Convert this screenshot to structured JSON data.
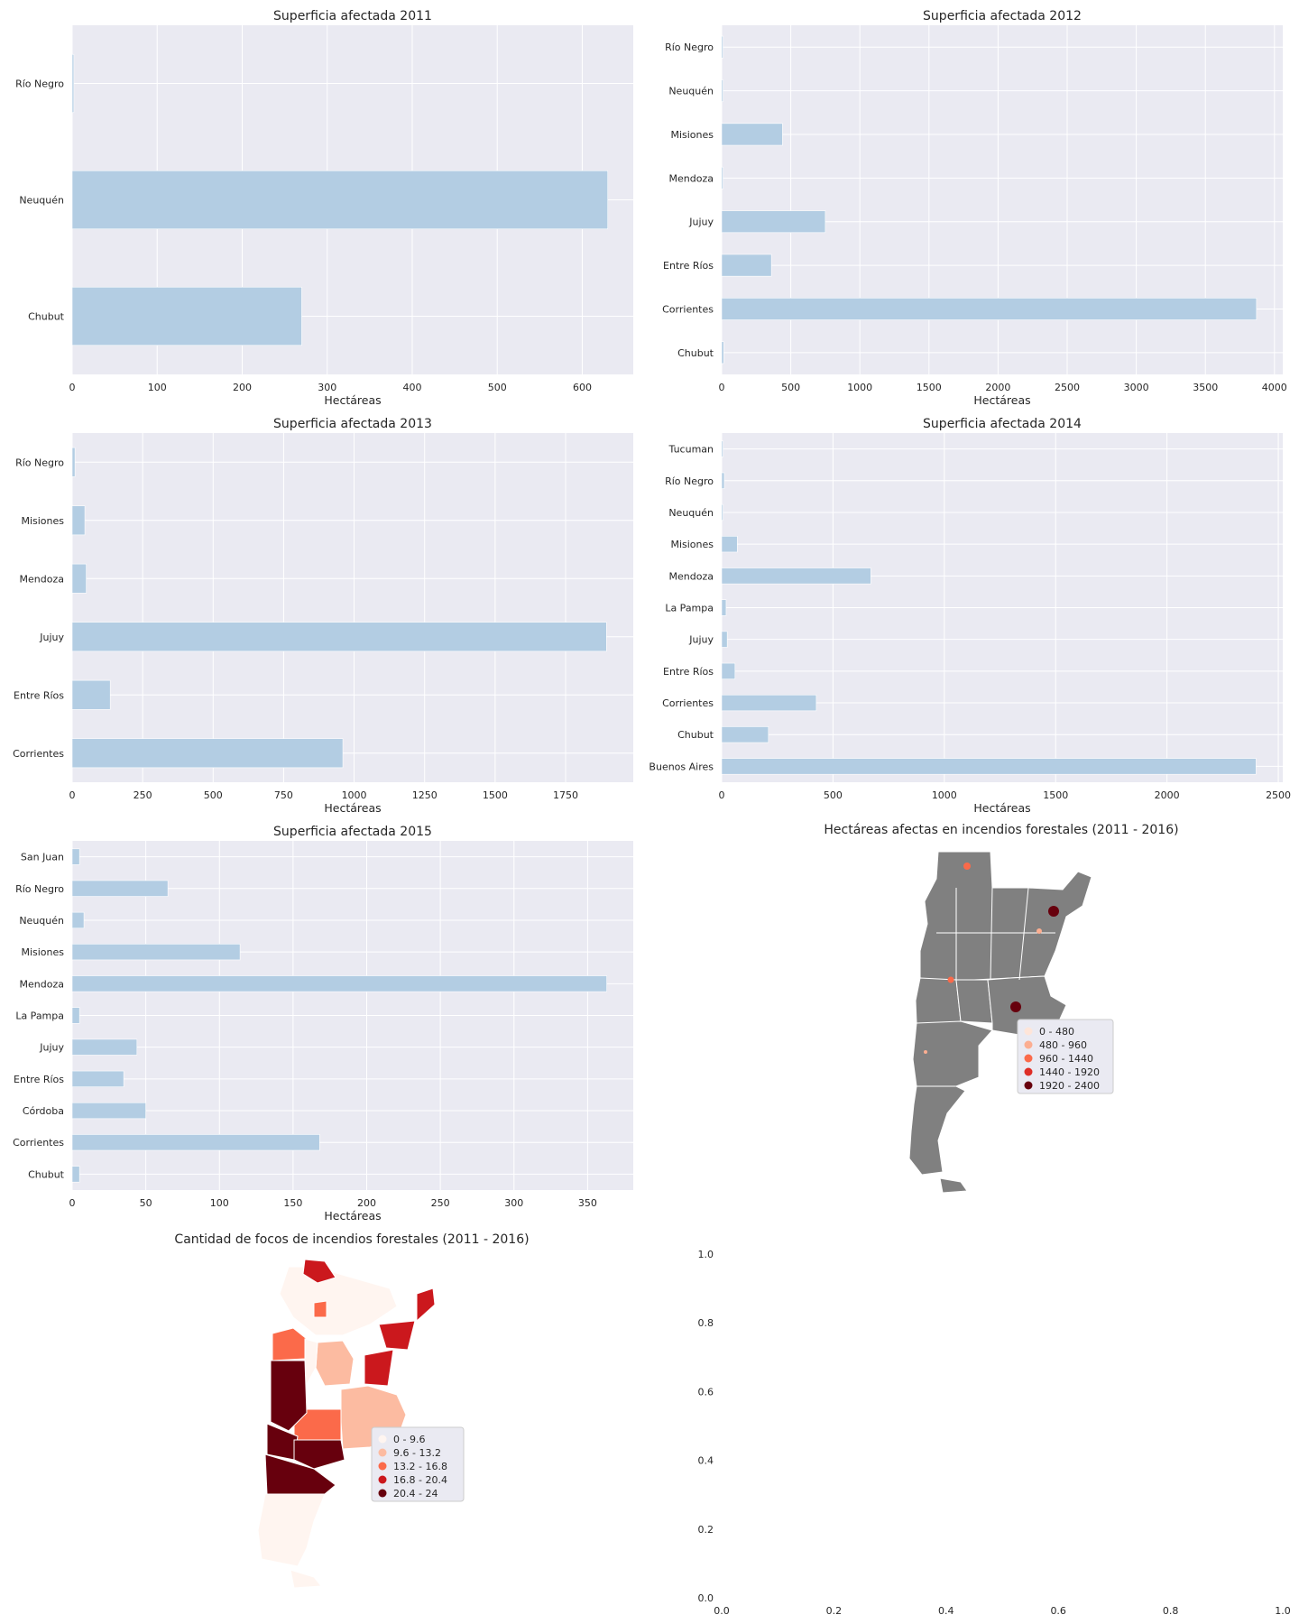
{
  "chart_data": [
    {
      "type": "bar",
      "orientation": "horizontal",
      "title": "Superficia afectada 2011",
      "xlabel": "Hectáreas",
      "ylabel": "",
      "categories": [
        "Chubut",
        "Neuquén",
        "Río Negro"
      ],
      "values": [
        270,
        630,
        2
      ],
      "xlim": [
        0,
        660
      ],
      "xticks": [
        "0",
        "100",
        "200",
        "300",
        "400",
        "500",
        "600"
      ],
      "grid": true,
      "bar_color": "#b3cde3"
    },
    {
      "type": "bar",
      "orientation": "horizontal",
      "title": "Superficia afectada 2012",
      "xlabel": "Hectáreas",
      "ylabel": "",
      "categories": [
        "Chubut",
        "Corrientes",
        "Entre Ríos",
        "Jujuy",
        "Mendoza",
        "Misiones",
        "Neuquén",
        "Río Negro"
      ],
      "values": [
        15,
        3870,
        360,
        750,
        8,
        440,
        10,
        2
      ],
      "xlim": [
        0,
        4060
      ],
      "xticks": [
        "0",
        "500",
        "1000",
        "1500",
        "2000",
        "2500",
        "3000",
        "3500",
        "4000"
      ],
      "grid": true,
      "bar_color": "#b3cde3"
    },
    {
      "type": "bar",
      "orientation": "horizontal",
      "title": "Superficia afectada 2013",
      "xlabel": "Hectáreas",
      "ylabel": "",
      "categories": [
        "Corrientes",
        "Entre Ríos",
        "Jujuy",
        "Mendoza",
        "Misiones",
        "Río Negro"
      ],
      "values": [
        960,
        135,
        1895,
        50,
        45,
        10
      ],
      "xlim": [
        0,
        1990
      ],
      "xticks": [
        "0",
        "250",
        "500",
        "750",
        "1000",
        "1250",
        "1500",
        "1750"
      ],
      "grid": true,
      "bar_color": "#b3cde3"
    },
    {
      "type": "bar",
      "orientation": "horizontal",
      "title": "Superficia afectada 2014",
      "xlabel": "Hectáreas",
      "ylabel": "",
      "categories": [
        "Buenos Aires",
        "Chubut",
        "Corrientes",
        "Entre Ríos",
        "Jujuy",
        "La Pampa",
        "Mendoza",
        "Misiones",
        "Neuquén",
        "Río Negro",
        "Tucuman"
      ],
      "values": [
        2400,
        210,
        425,
        60,
        25,
        20,
        670,
        70,
        3,
        12,
        1
      ],
      "xlim": [
        0,
        2520
      ],
      "xticks": [
        "0",
        "500",
        "1000",
        "1500",
        "2000",
        "2500"
      ],
      "grid": true,
      "bar_color": "#b3cde3"
    },
    {
      "type": "bar",
      "orientation": "horizontal",
      "title": "Superficia afectada 2015",
      "xlabel": "Hectáreas",
      "ylabel": "",
      "categories": [
        "Chubut",
        "Corrientes",
        "Córdoba",
        "Entre Ríos",
        "Jujuy",
        "La Pampa",
        "Mendoza",
        "Misiones",
        "Neuquén",
        "Río Negro",
        "San Juan"
      ],
      "values": [
        5,
        168,
        50,
        35,
        44,
        5,
        363,
        114,
        8,
        65,
        5
      ],
      "xlim": [
        0,
        381
      ],
      "xticks": [
        "0",
        "50",
        "100",
        "150",
        "200",
        "250",
        "300",
        "350"
      ],
      "grid": true,
      "bar_color": "#b3cde3"
    },
    {
      "type": "map",
      "title": "Hectáreas afectas en incendios forestales (2011 - 2016)",
      "legend_placement": "center-right",
      "legend": [
        "0 - 480",
        "480 - 960",
        "960 - 1440",
        "1440 - 1920",
        "1920 - 2400"
      ],
      "legend_colors": [
        "#fee5d9",
        "#fcae91",
        "#fb6a4a",
        "#de2d26",
        "#67000d"
      ],
      "base_color": "#808080"
    },
    {
      "type": "map",
      "title": "Cantidad de focos de incendios forestales (2011 - 2016)",
      "legend_placement": "center-right",
      "legend": [
        "0 - 9.6",
        "9.6 - 13.2",
        "13.2 - 16.8",
        "16.8 - 20.4",
        "20.4 - 24"
      ],
      "legend_colors": [
        "#fff5f0",
        "#fcbba1",
        "#fb6a4a",
        "#cb181d",
        "#67000d"
      ]
    },
    {
      "type": "scatter",
      "title": "",
      "xlim": [
        0,
        1
      ],
      "ylim": [
        0,
        1
      ],
      "xticks": [
        "0.0",
        "0.2",
        "0.4",
        "0.6",
        "0.8",
        "1.0"
      ],
      "yticks": [
        "0.0",
        "0.2",
        "0.4",
        "0.6",
        "0.8",
        "1.0"
      ],
      "grid": false
    }
  ]
}
